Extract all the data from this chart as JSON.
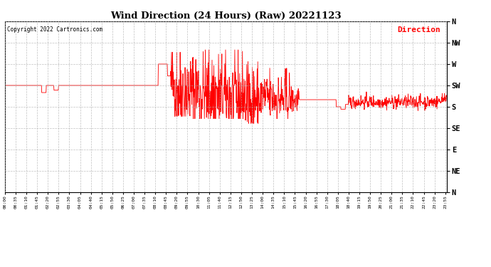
{
  "title": "Wind Direction (24 Hours) (Raw) 20221123",
  "copyright": "Copyright 2022 Cartronics.com",
  "legend_label": "Direction",
  "legend_color": "#ff0000",
  "line_color": "#ff0000",
  "background_color": "#ffffff",
  "grid_color": "#b0b0b0",
  "y_labels": [
    "N",
    "NW",
    "W",
    "SW",
    "S",
    "SE",
    "E",
    "NE",
    "N"
  ],
  "y_values": [
    360,
    315,
    270,
    225,
    180,
    135,
    90,
    45,
    0
  ],
  "ylim": [
    0,
    360
  ],
  "x_tick_interval_minutes": 35,
  "total_minutes": 1440
}
